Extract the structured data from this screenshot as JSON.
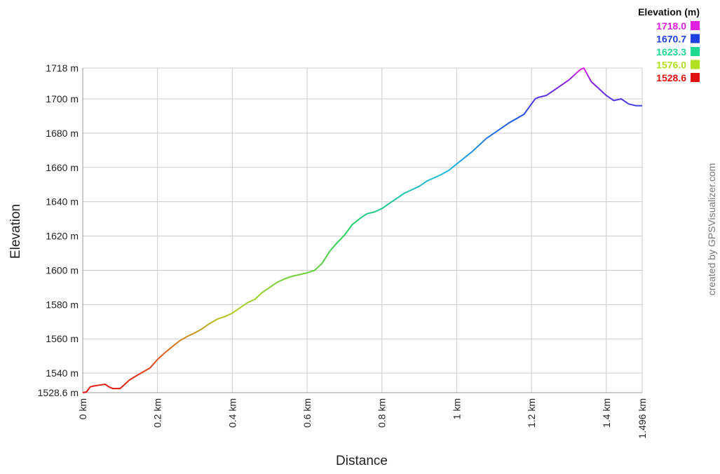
{
  "chart_data": {
    "type": "line",
    "xlabel": "Distance",
    "ylabel": "Elevation",
    "xlim": [
      0,
      1.496
    ],
    "ylim": [
      1528.6,
      1718
    ],
    "x_ticks": [
      {
        "value": 0,
        "label": "0 km"
      },
      {
        "value": 0.2,
        "label": "0.2 km"
      },
      {
        "value": 0.4,
        "label": "0.4 km"
      },
      {
        "value": 0.6,
        "label": "0.6 km"
      },
      {
        "value": 0.8,
        "label": "0.8 km"
      },
      {
        "value": 1.0,
        "label": "1 km"
      },
      {
        "value": 1.2,
        "label": "1.2 km"
      },
      {
        "value": 1.4,
        "label": "1.4 km"
      },
      {
        "value": 1.496,
        "label": "1.496 km"
      }
    ],
    "y_ticks": [
      {
        "value": 1528.6,
        "label": "1528.6 m"
      },
      {
        "value": 1540,
        "label": "1540 m"
      },
      {
        "value": 1560,
        "label": "1560 m"
      },
      {
        "value": 1580,
        "label": "1580 m"
      },
      {
        "value": 1600,
        "label": "1600 m"
      },
      {
        "value": 1620,
        "label": "1620 m"
      },
      {
        "value": 1640,
        "label": "1640 m"
      },
      {
        "value": 1660,
        "label": "1660 m"
      },
      {
        "value": 1680,
        "label": "1680 m"
      },
      {
        "value": 1700,
        "label": "1700 m"
      },
      {
        "value": 1718,
        "label": "1718 m"
      }
    ],
    "grid": true,
    "legend": {
      "title": "Elevation (m)",
      "placement": "top-right",
      "entries": [
        {
          "label": "1718.0",
          "color": "#e020e0"
        },
        {
          "label": "1670.7",
          "color": "#2040e0"
        },
        {
          "label": "1623.3",
          "color": "#20d890"
        },
        {
          "label": "1576.0",
          "color": "#b0e020"
        },
        {
          "label": "1528.6",
          "color": "#e01010"
        }
      ]
    },
    "credit": "created by GPSVisualizer.com",
    "series": [
      {
        "x": [
          0,
          0.01,
          0.02,
          0.03,
          0.045,
          0.06,
          0.07,
          0.08,
          0.1,
          0.11,
          0.125,
          0.14,
          0.16,
          0.18,
          0.2,
          0.22,
          0.24,
          0.26,
          0.28,
          0.3,
          0.32,
          0.34,
          0.36,
          0.38,
          0.4,
          0.42,
          0.44,
          0.46,
          0.48,
          0.5,
          0.52,
          0.54,
          0.56,
          0.58,
          0.6,
          0.62,
          0.64,
          0.66,
          0.68,
          0.7,
          0.72,
          0.74,
          0.76,
          0.78,
          0.8,
          0.82,
          0.84,
          0.86,
          0.88,
          0.9,
          0.92,
          0.94,
          0.96,
          0.98,
          1.0,
          1.02,
          1.04,
          1.06,
          1.08,
          1.1,
          1.12,
          1.14,
          1.16,
          1.18,
          1.2,
          1.21,
          1.22,
          1.24,
          1.26,
          1.28,
          1.3,
          1.32,
          1.33,
          1.34,
          1.35,
          1.36,
          1.38,
          1.4,
          1.42,
          1.44,
          1.46,
          1.48,
          1.496
        ],
        "y": [
          1528.6,
          1529,
          1532,
          1532.5,
          1533,
          1533.5,
          1532,
          1531,
          1531,
          1533,
          1536,
          1538,
          1540.5,
          1543,
          1548,
          1552,
          1555.5,
          1559,
          1561.5,
          1563.5,
          1566,
          1569,
          1571.5,
          1573,
          1575,
          1578,
          1581,
          1583,
          1587,
          1590,
          1593,
          1595,
          1596.5,
          1597.5,
          1598.5,
          1600,
          1604,
          1611,
          1616,
          1620.5,
          1626.5,
          1630,
          1633,
          1634,
          1636,
          1639,
          1642,
          1645,
          1647,
          1649,
          1652,
          1654,
          1656,
          1658.5,
          1662,
          1665.5,
          1669,
          1673,
          1677,
          1680,
          1683,
          1686,
          1688.5,
          1691,
          1697,
          1700,
          1701,
          1702,
          1705,
          1708,
          1711,
          1715,
          1717,
          1718,
          1714,
          1710,
          1706,
          1702,
          1699,
          1700,
          1697,
          1696,
          1696
        ]
      }
    ]
  }
}
